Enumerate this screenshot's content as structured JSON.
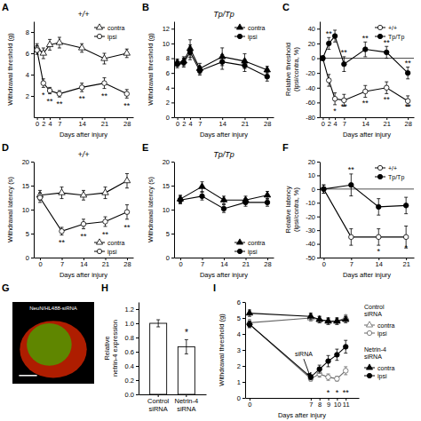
{
  "chart_data": [
    {
      "type": "line",
      "title": "+/+",
      "x_label": "Days after injury",
      "y_label": "Withdrawal threshold (g)",
      "x": [
        0,
        2,
        4,
        7,
        14,
        21,
        28
      ],
      "series": [
        {
          "name": "contra",
          "color": "#000000",
          "marker": "open-triangle",
          "values": [
            6.5,
            6.0,
            6.8,
            7.0,
            6.5,
            5.5,
            6.0
          ],
          "errors": [
            0.4,
            0.5,
            0.5,
            0.5,
            0.4,
            0.5,
            0.4
          ]
        },
        {
          "name": "ipsi",
          "color": "#000000",
          "marker": "open-circle",
          "values": [
            6.3,
            3.2,
            2.5,
            2.2,
            2.8,
            3.2,
            2.2
          ],
          "errors": [
            0.4,
            0.4,
            0.3,
            0.3,
            0.4,
            0.5,
            0.4
          ]
        }
      ],
      "xlim": [
        -1,
        30
      ],
      "xticks": [
        0,
        2,
        4,
        7,
        14,
        21,
        28
      ],
      "ylim": [
        0,
        9
      ],
      "yticks": [
        2,
        4,
        6,
        8
      ],
      "legend": "upper-right",
      "annotations": [
        {
          "text": "A"
        },
        {
          "text": "*",
          "x": 2,
          "y": 2.4
        },
        {
          "text": "**",
          "x": 4,
          "y": 1.8
        },
        {
          "text": "**",
          "x": 7,
          "y": 1.5
        },
        {
          "text": "**",
          "x": 14,
          "y": 2.0
        },
        {
          "text": "**",
          "x": 21,
          "y": 2.3
        },
        {
          "text": "**",
          "x": 28,
          "y": 1.4
        }
      ]
    },
    {
      "type": "line",
      "title": "Tp/Tp",
      "x_label": "Days after injury",
      "y_label": "Withdrawal threshold (g)",
      "x": [
        0,
        2,
        4,
        7,
        14,
        21,
        28
      ],
      "series": [
        {
          "name": "contra",
          "color": "#000000",
          "marker": "filled-triangle",
          "values": [
            7.4,
            7.6,
            9.3,
            6.6,
            8.2,
            7.6,
            6.4
          ],
          "errors": [
            0.5,
            0.6,
            1.2,
            0.7,
            1.2,
            1.0,
            0.5
          ]
        },
        {
          "name": "ipsi",
          "color": "#000000",
          "marker": "filled-circle",
          "values": [
            7.2,
            7.4,
            8.8,
            6.3,
            7.5,
            7.0,
            5.5
          ],
          "errors": [
            0.5,
            0.6,
            1.0,
            0.6,
            1.0,
            0.8,
            0.6
          ]
        }
      ],
      "xlim": [
        -1,
        30
      ],
      "xticks": [
        0,
        2,
        4,
        7,
        14,
        21,
        28
      ],
      "ylim": [
        0,
        13
      ],
      "yticks": [
        0,
        2,
        4,
        6,
        8,
        10,
        12
      ],
      "legend": "upper-right",
      "annotations": [
        {
          "text": "B"
        }
      ]
    },
    {
      "type": "line",
      "x_label": "Days after injury",
      "y_label": "Relative threshold\n(ipsi/contra, %)",
      "x": [
        0,
        2,
        4,
        7,
        14,
        21,
        28
      ],
      "series": [
        {
          "name": "+/+",
          "color": "#000000",
          "marker": "open-circle",
          "values": [
            0,
            -30,
            -55,
            -57,
            -45,
            -40,
            -58
          ],
          "errors": [
            3,
            8,
            8,
            8,
            8,
            8,
            7
          ]
        },
        {
          "name": "Tp/Tp",
          "color": "#000000",
          "marker": "filled-circle",
          "values": [
            0,
            20,
            30,
            -8,
            12,
            8,
            -20
          ],
          "errors": [
            3,
            8,
            8,
            10,
            10,
            8,
            8
          ]
        }
      ],
      "hlines": [
        0
      ],
      "xlim": [
        -1,
        30
      ],
      "xticks": [
        0,
        2,
        4,
        7,
        14,
        21,
        28
      ],
      "ylim": [
        -80,
        50
      ],
      "yticks": [
        -80,
        -60,
        -40,
        -20,
        0,
        20,
        40
      ],
      "legend": "upper-right",
      "annotations": [
        {
          "text": "C"
        },
        {
          "text": "*",
          "x": 4,
          "y": -67
        },
        {
          "text": "**",
          "x": 7,
          "y": -69
        },
        {
          "text": "**",
          "x": 14,
          "y": -57
        },
        {
          "text": "**",
          "x": 21,
          "y": -52
        },
        {
          "text": "**",
          "x": 28,
          "y": -69
        },
        {
          "text": "**",
          "x": 2,
          "y": 30
        },
        {
          "text": "**",
          "x": 7,
          "y": 4
        },
        {
          "text": "**",
          "x": 14,
          "y": 24
        },
        {
          "text": "**",
          "x": 21,
          "y": 18
        },
        {
          "text": "**",
          "x": 28,
          "y": -10
        }
      ]
    },
    {
      "type": "line",
      "title": "+/+",
      "x_label": "Days after injury",
      "y_label": "Withdrawal latency (s)",
      "x": [
        0,
        7,
        14,
        21,
        28
      ],
      "series": [
        {
          "name": "contra",
          "color": "#000000",
          "marker": "open-triangle",
          "values": [
            13.0,
            13.5,
            13.0,
            13.5,
            16.0
          ],
          "errors": [
            1.0,
            1.2,
            1.0,
            1.2,
            1.5
          ]
        },
        {
          "name": "ipsi",
          "color": "#000000",
          "marker": "open-circle",
          "values": [
            12.5,
            5.5,
            7.0,
            7.5,
            9.5
          ],
          "errors": [
            1.0,
            0.8,
            1.0,
            1.0,
            1.5
          ]
        }
      ],
      "xlim": [
        -2,
        30
      ],
      "xticks": [
        0,
        7,
        14,
        21,
        28
      ],
      "ylim": [
        0,
        20
      ],
      "yticks": [
        0,
        5,
        10,
        15,
        20
      ],
      "legend": "lower-right",
      "annotations": [
        {
          "text": "D"
        },
        {
          "text": "**",
          "x": 7,
          "y": 3.7
        },
        {
          "text": "**",
          "x": 14,
          "y": 5
        },
        {
          "text": "**",
          "x": 21,
          "y": 5.5
        },
        {
          "text": "**",
          "x": 28,
          "y": 7
        }
      ]
    },
    {
      "type": "line",
      "title": "Tp/Tp",
      "x_label": "Days after injury",
      "y_label": "Withdrawal latency (s)",
      "x": [
        0,
        7,
        14,
        21,
        28
      ],
      "series": [
        {
          "name": "contra",
          "color": "#000000",
          "marker": "filled-triangle",
          "values": [
            12.2,
            14.8,
            12.0,
            12.0,
            13.0
          ],
          "errors": [
            0.8,
            1.0,
            0.8,
            0.8,
            0.8
          ]
        },
        {
          "name": "ipsi",
          "color": "#000000",
          "marker": "filled-circle",
          "values": [
            12.0,
            12.8,
            10.2,
            11.5,
            11.5
          ],
          "errors": [
            0.8,
            0.8,
            0.8,
            0.8,
            0.8
          ]
        }
      ],
      "xlim": [
        -2,
        30
      ],
      "xticks": [
        0,
        7,
        14,
        21,
        28
      ],
      "ylim": [
        0,
        20
      ],
      "yticks": [
        0,
        5,
        10,
        15,
        20
      ],
      "legend": "lower-right",
      "annotations": [
        {
          "text": "E"
        }
      ]
    },
    {
      "type": "line",
      "x_label": "Days after injury",
      "y_label": "Relative latency\n(ipsi/contra, %)",
      "x": [
        0,
        7,
        14,
        21
      ],
      "series": [
        {
          "name": "+/+",
          "color": "#000000",
          "marker": "open-circle",
          "values": [
            0,
            -35,
            -35,
            -35
          ],
          "errors": [
            3,
            6,
            6,
            8
          ]
        },
        {
          "name": "Tp/Tp",
          "color": "#000000",
          "marker": "filled-circle",
          "values": [
            0,
            3,
            -13,
            -12
          ],
          "errors": [
            3,
            8,
            6,
            6
          ]
        }
      ],
      "hlines": [
        0
      ],
      "xlim": [
        -1,
        23
      ],
      "xticks": [
        0,
        7,
        14,
        21
      ],
      "ylim": [
        -50,
        20
      ],
      "yticks": [
        -50,
        -40,
        -30,
        -20,
        -10,
        0,
        10,
        20
      ],
      "legend": "upper-right",
      "annotations": [
        {
          "text": "F"
        },
        {
          "text": "**",
          "x": 7,
          "y": 12.5
        },
        {
          "text": "*",
          "x": 14,
          "y": -43
        },
        {
          "text": "*",
          "x": 21,
          "y": -45
        }
      ]
    },
    {
      "type": "image",
      "title": "NeuN/HL488-siRNA",
      "colors": [
        "#cc2200",
        "#44aa00"
      ],
      "annotations": [
        {
          "text": "G"
        }
      ]
    },
    {
      "type": "bar",
      "y_label": "Relative\nnetrin-4 expression",
      "categories": [
        "Control\nsiRNA",
        "Netrin-4\nsiRNA"
      ],
      "values": [
        1.0,
        0.67
      ],
      "errors": [
        0.05,
        0.1
      ],
      "color": "#ffffff",
      "ylim": [
        0,
        1.3
      ],
      "yticks": [
        {
          "value": 0,
          "label": "0.0"
        },
        0.2,
        0.4,
        0.6,
        0.8,
        {
          "value": 1,
          "label": "1.0"
        },
        1.2
      ],
      "annotations": [
        {
          "text": "H"
        },
        {
          "text": "*",
          "x": "Netrin-4\nsiRNA",
          "y": 0.82
        }
      ]
    },
    {
      "type": "line",
      "x_label": "Days after injury",
      "y_label": "Withdrawal threshold (g)",
      "x": [
        0,
        7,
        8,
        9,
        10,
        11
      ],
      "series": [
        {
          "name": "contra",
          "group": "Control\nsiRNA",
          "color": "#666666",
          "marker": "open-triangle",
          "values": [
            4.7,
            5.0,
            4.9,
            4.8,
            4.8,
            5.0
          ],
          "errors": [
            0.2,
            0.2,
            0.2,
            0.2,
            0.2,
            0.2
          ]
        },
        {
          "name": "ipsi",
          "group": "Control\nsiRNA",
          "color": "#666666",
          "marker": "open-circle",
          "values": [
            4.6,
            1.2,
            1.5,
            1.3,
            1.2,
            1.7
          ],
          "errors": [
            0.2,
            0.15,
            0.2,
            0.2,
            0.15,
            0.25
          ]
        },
        {
          "name": "contra",
          "group": "Netrin-4\nsiRNA",
          "color": "#000000",
          "marker": "filled-triangle",
          "values": [
            5.3,
            5.1,
            4.9,
            4.8,
            4.8,
            4.9
          ],
          "errors": [
            0.2,
            0.2,
            0.2,
            0.2,
            0.2,
            0.2
          ]
        },
        {
          "name": "ipsi",
          "group": "Netrin-4\nsiRNA",
          "color": "#000000",
          "marker": "filled-circle",
          "values": [
            4.6,
            1.3,
            1.8,
            2.3,
            2.7,
            3.2
          ],
          "errors": [
            0.2,
            0.15,
            0.25,
            0.35,
            0.35,
            0.4
          ]
        }
      ],
      "xlim": [
        -0.5,
        12.5
      ],
      "xticks": [
        0,
        7,
        8,
        9,
        10,
        11
      ],
      "ylim": [
        0,
        6
      ],
      "yticks": [
        0,
        1,
        2,
        3,
        4,
        5,
        6
      ],
      "legend": "right",
      "annotations": [
        {
          "text": "I"
        },
        {
          "text": "siRNA",
          "x": 6.2,
          "y": 2.6,
          "arrow_to": [
            7,
            1.25
          ]
        },
        {
          "text": "*",
          "x": 9,
          "y": 0.15
        },
        {
          "text": "*",
          "x": 10,
          "y": 0.15
        },
        {
          "text": "**",
          "x": 11,
          "y": 0.15
        }
      ]
    }
  ]
}
